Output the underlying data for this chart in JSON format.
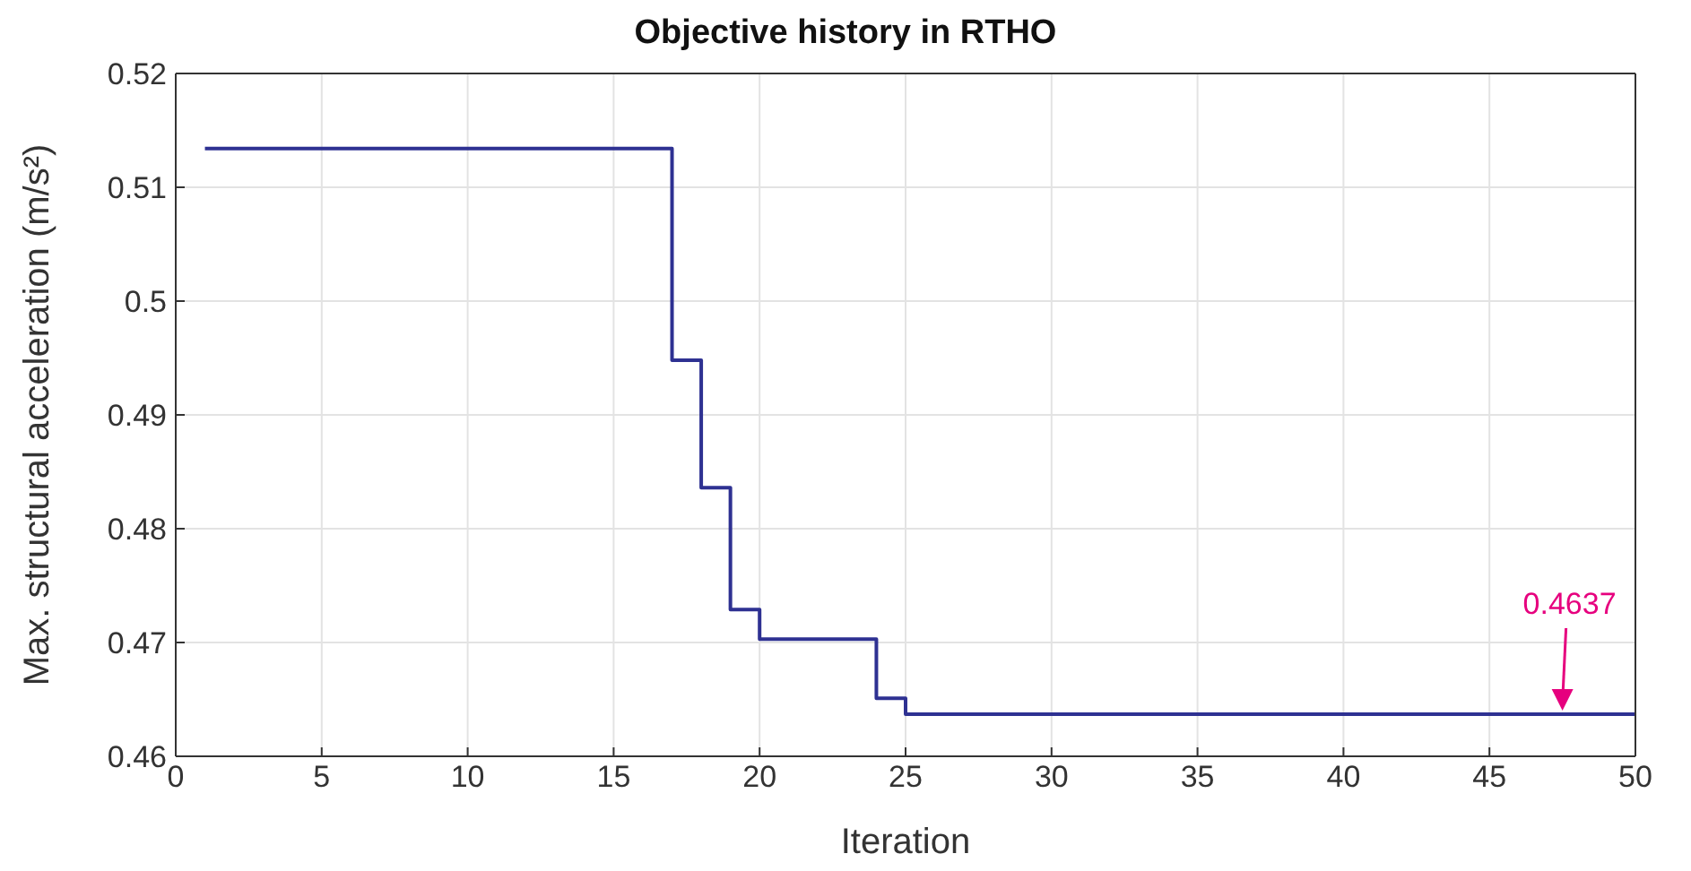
{
  "chart_data": {
    "type": "step",
    "title": "Objective history in RTHO",
    "xlabel": "Iteration",
    "ylabel": "Max. structural acceleration (m/s²)",
    "x": [
      1,
      17,
      18,
      19,
      20,
      24,
      25,
      50
    ],
    "series": [
      {
        "color": "#2e3192",
        "values": [
          0.5134,
          0.4948,
          0.4836,
          0.4729,
          0.4703,
          0.4651,
          0.4637,
          0.4637
        ]
      }
    ],
    "xlim": [
      0,
      50
    ],
    "xticks": [
      0,
      5,
      10,
      15,
      20,
      25,
      30,
      35,
      40,
      45,
      50
    ],
    "ylim": [
      0.46,
      0.52
    ],
    "yticks": [
      0.46,
      0.47,
      0.48,
      0.49,
      0.5,
      0.51,
      0.52
    ],
    "grid": true,
    "marker": "none",
    "line_style": "solid",
    "annotations": [
      {
        "text": "0.4637",
        "x": 47.5,
        "y": 0.4637
      }
    ]
  }
}
